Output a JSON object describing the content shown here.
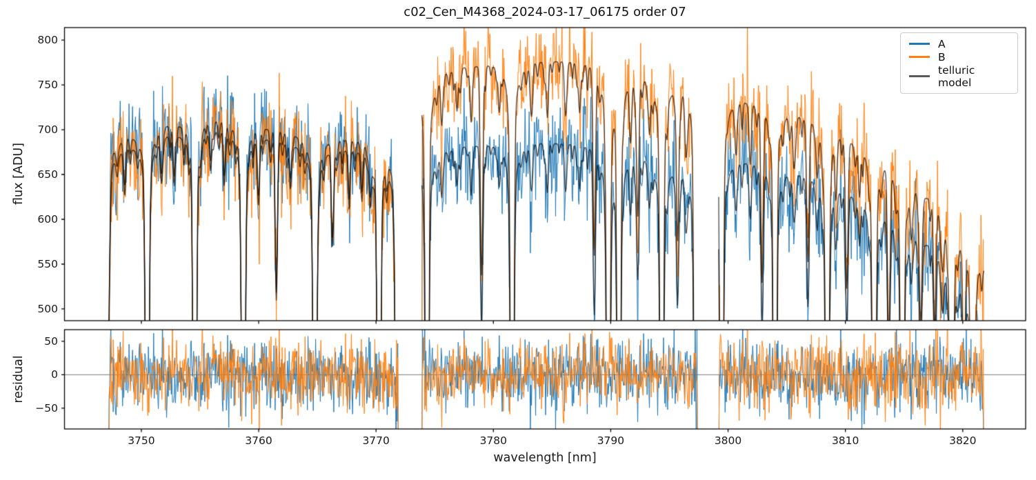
{
  "chart": {
    "title": "c02_Cen_M4368_2024-03-17_06175  order 07",
    "xlabel": "wavelength [nm]",
    "top_ylabel": "flux [ADU]",
    "bottom_ylabel": "residual",
    "legend": [
      {
        "label": "A",
        "color": "#1f77b4"
      },
      {
        "label": "B",
        "color": "#ff7f0e"
      },
      {
        "label": "telluric model",
        "color": "rgba(0,0,0,0.65)"
      }
    ]
  },
  "chart_data": {
    "type": "line",
    "title": "c02_Cen_M4368_2024-03-17_06175  order 07",
    "xlabel": "wavelength [nm]",
    "xlim": [
      3743.45,
      3825.36
    ],
    "xticks": [
      3750,
      3760,
      3770,
      3780,
      3790,
      3800,
      3810,
      3820
    ],
    "grid": false,
    "legend_position": "upper right",
    "panels": [
      {
        "name": "flux",
        "ylabel": "flux [ADU]",
        "ylim": [
          486.9,
          813.9
        ],
        "yticks": [
          500,
          550,
          600,
          650,
          700,
          750,
          800
        ]
      },
      {
        "name": "residual",
        "ylabel": "residual",
        "ylim": [
          -81,
          67.3
        ],
        "yticks": [
          -50,
          0,
          50
        ],
        "zero_line": true
      }
    ],
    "series": [
      {
        "name": "A",
        "color": "#1f77b4",
        "noise_sigma_adu": 27
      },
      {
        "name": "B",
        "color": "#ff7f0e",
        "noise_sigma_adu": 27
      },
      {
        "name": "telluric model",
        "color": "rgba(0,0,0,0.68)"
      }
    ],
    "sample_step_nm": 0.05,
    "segments": [
      {
        "range": [
          3747.2,
          3771.9
        ],
        "continuum_A": [
          [
            3747.2,
            672
          ],
          [
            3749,
            696
          ],
          [
            3751,
            707
          ],
          [
            3753,
            711
          ],
          [
            3755,
            717
          ],
          [
            3757,
            715
          ],
          [
            3759,
            709
          ],
          [
            3761,
            704
          ],
          [
            3763,
            697
          ],
          [
            3765,
            693
          ],
          [
            3767,
            692
          ],
          [
            3769,
            691
          ],
          [
            3771,
            687
          ],
          [
            3771.9,
            681
          ]
        ],
        "continuum_B": [
          [
            3747.2,
            660
          ],
          [
            3749,
            684
          ],
          [
            3751,
            695
          ],
          [
            3753,
            699
          ],
          [
            3755,
            705
          ],
          [
            3757,
            703
          ],
          [
            3759,
            697
          ],
          [
            3761,
            692
          ],
          [
            3763,
            685
          ],
          [
            3765,
            681
          ],
          [
            3767,
            680
          ],
          [
            3769,
            679
          ],
          [
            3771,
            673
          ],
          [
            3771.9,
            661
          ]
        ],
        "telluric_lines": [
          [
            3747.15,
            0.35,
            0.12
          ],
          [
            3748.6,
            0.07,
            0.09
          ],
          [
            3750.5,
            1,
            0.11
          ],
          [
            3751.7,
            0.06,
            0.09
          ],
          [
            3752.8,
            0.08,
            0.09
          ],
          [
            3754.55,
            1,
            0.11
          ],
          [
            3755.9,
            0.06,
            0.09
          ],
          [
            3757.1,
            0.07,
            0.09
          ],
          [
            3758.7,
            1,
            0.11
          ],
          [
            3760.0,
            0.08,
            0.09
          ],
          [
            3761.5,
            0.22,
            0.1
          ],
          [
            3762.7,
            0.07,
            0.09
          ],
          [
            3764.8,
            1,
            0.11
          ],
          [
            3766.3,
            0.14,
            0.1
          ],
          [
            3767.7,
            0.07,
            0.09
          ],
          [
            3768.8,
            0.06,
            0.09
          ],
          [
            3769.5,
            0.07,
            0.09
          ],
          [
            3770.25,
            1,
            0.11
          ],
          [
            3771.8,
            1,
            0.11
          ]
        ],
        "micro_seed": 11
      },
      {
        "range": [
          3773.9,
          3797.4
        ],
        "continuum_A": [
          [
            3773.9,
            668
          ],
          [
            3776,
            679
          ],
          [
            3778,
            683
          ],
          [
            3780,
            685
          ],
          [
            3782,
            687
          ],
          [
            3784,
            687
          ],
          [
            3786,
            686
          ],
          [
            3788,
            685
          ],
          [
            3790,
            682
          ],
          [
            3792,
            677
          ],
          [
            3794,
            669
          ],
          [
            3796,
            659
          ],
          [
            3797.4,
            650
          ]
        ],
        "continuum_B": [
          [
            3773.9,
            750
          ],
          [
            3776,
            767
          ],
          [
            3778,
            772
          ],
          [
            3780,
            775
          ],
          [
            3782,
            777
          ],
          [
            3784,
            778
          ],
          [
            3786,
            778
          ],
          [
            3788,
            777
          ],
          [
            3790,
            773
          ],
          [
            3792,
            767
          ],
          [
            3794,
            759
          ],
          [
            3796,
            753
          ],
          [
            3797.4,
            749
          ]
        ],
        "telluric_lines": [
          [
            3774.35,
            1,
            0.11
          ],
          [
            3775.6,
            0.07,
            0.09
          ],
          [
            3776.9,
            0.06,
            0.09
          ],
          [
            3778.1,
            0.08,
            0.09
          ],
          [
            3779.0,
            0.3,
            0.1
          ],
          [
            3780.5,
            0.06,
            0.09
          ],
          [
            3781.6,
            1,
            0.11
          ],
          [
            3783.2,
            0.06,
            0.09
          ],
          [
            3784.6,
            0.08,
            0.09
          ],
          [
            3786.2,
            0.06,
            0.09
          ],
          [
            3787.35,
            0.07,
            0.09
          ],
          [
            3788.6,
            0.25,
            0.1
          ],
          [
            3789.8,
            1,
            0.11
          ],
          [
            3790.7,
            1,
            0.11
          ],
          [
            3791.7,
            0.08,
            0.09
          ],
          [
            3792.3,
            0.2,
            0.1
          ],
          [
            3793.3,
            0.07,
            0.09
          ],
          [
            3794.35,
            1,
            0.11
          ],
          [
            3795.7,
            0.22,
            0.1
          ],
          [
            3796.4,
            0.08,
            0.09
          ],
          [
            3797.25,
            1,
            0.11
          ]
        ],
        "micro_seed": 22
      },
      {
        "range": [
          3799.2,
          3821.8
        ],
        "continuum_A": [
          [
            3799.2,
            668
          ],
          [
            3801,
            667
          ],
          [
            3803,
            664
          ],
          [
            3805,
            658
          ],
          [
            3807,
            650
          ],
          [
            3809,
            641
          ],
          [
            3811,
            629
          ],
          [
            3813,
            614
          ],
          [
            3815,
            597
          ],
          [
            3817,
            576
          ],
          [
            3819,
            551
          ],
          [
            3821,
            517
          ],
          [
            3821.8,
            494
          ]
        ],
        "continuum_B": [
          [
            3799.2,
            737
          ],
          [
            3801,
            735
          ],
          [
            3803,
            731
          ],
          [
            3805,
            724
          ],
          [
            3807,
            715
          ],
          [
            3809,
            703
          ],
          [
            3811,
            689
          ],
          [
            3813,
            673
          ],
          [
            3815,
            653
          ],
          [
            3817,
            629
          ],
          [
            3819,
            601
          ],
          [
            3821,
            569
          ],
          [
            3821.8,
            553
          ]
        ],
        "telluric_lines": [
          [
            3799.45,
            1,
            0.11
          ],
          [
            3800.7,
            0.07,
            0.09
          ],
          [
            3801.9,
            0.08,
            0.09
          ],
          [
            3802.9,
            0.25,
            0.1
          ],
          [
            3804.0,
            1,
            0.11
          ],
          [
            3805.6,
            0.07,
            0.09
          ],
          [
            3806.8,
            0.2,
            0.1
          ],
          [
            3807.6,
            0.07,
            0.09
          ],
          [
            3808.45,
            1,
            0.11
          ],
          [
            3809.2,
            0.08,
            0.09
          ],
          [
            3810.1,
            0.22,
            0.1
          ],
          [
            3811.2,
            0.08,
            0.09
          ],
          [
            3812.45,
            1,
            0.11
          ],
          [
            3813.7,
            0.28,
            0.1
          ],
          [
            3814.85,
            1,
            0.11
          ],
          [
            3815.6,
            0.08,
            0.09
          ],
          [
            3816.4,
            0.22,
            0.1
          ],
          [
            3817.6,
            0.2,
            0.1
          ],
          [
            3818.3,
            0.08,
            0.09
          ],
          [
            3819.05,
            1,
            0.11
          ],
          [
            3820.1,
            0.25,
            0.1
          ],
          [
            3820.85,
            1,
            0.11
          ]
        ],
        "micro_seed": 33
      }
    ],
    "micro_lines": {
      "spacing_nm": 0.38,
      "spacing_jitter_nm": 0.3,
      "depth_min": 0.012,
      "depth_max": 0.042,
      "sigma_min": 0.05,
      "sigma_max": 0.1
    },
    "noise_seeds": {
      "A": [
        101,
        103,
        105
      ],
      "B": [
        202,
        204,
        206
      ]
    }
  }
}
